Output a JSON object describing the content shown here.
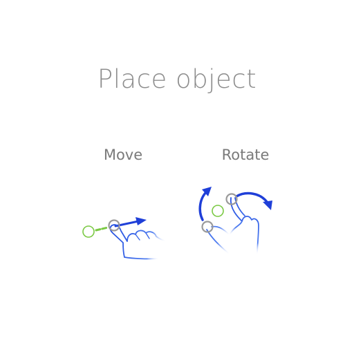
{
  "title": "Place object",
  "gestures": [
    {
      "label": "Move",
      "icon": "drag-gesture-icon"
    },
    {
      "label": "Rotate",
      "icon": "rotate-gesture-icon"
    }
  ],
  "colors": {
    "title_text": "#8d8d8d",
    "label_text": "#7a7a7a",
    "hand_stroke": "#2450e0",
    "arrow_fill": "#1f3fd8",
    "target_green": "#7ac943",
    "touch_gray": "#9a9a9a"
  }
}
